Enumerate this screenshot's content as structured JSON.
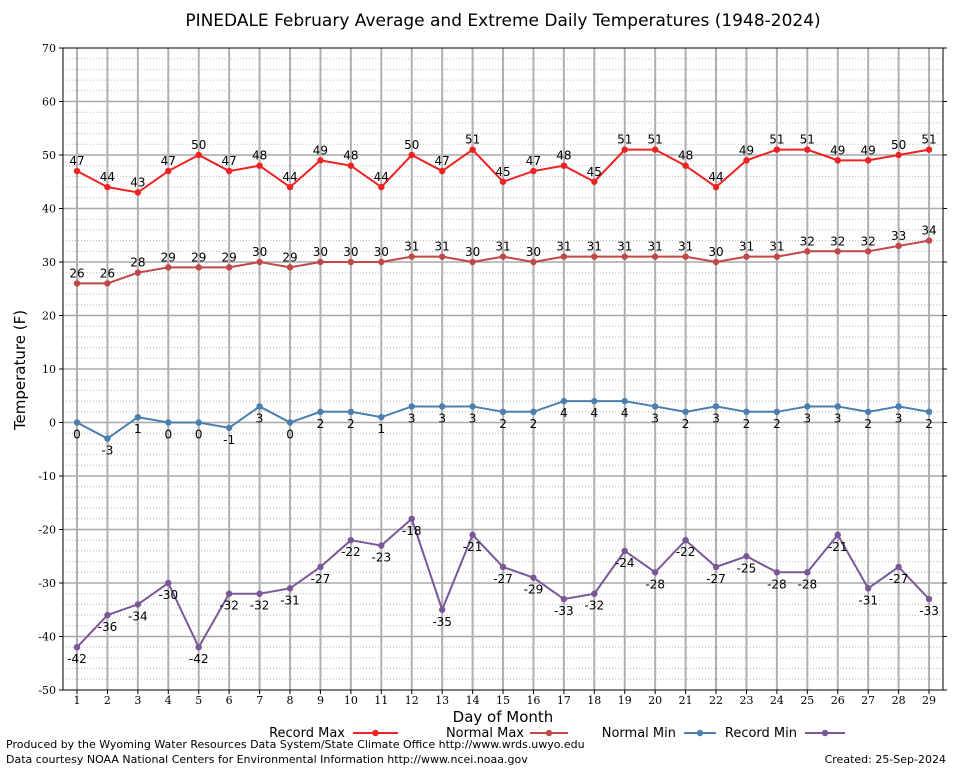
{
  "chart_data": {
    "type": "line",
    "title": "PINEDALE February Average and Extreme Daily Temperatures (1948-2024)",
    "xlabel": "Day of Month",
    "ylabel": "Temperature (F)",
    "ylim": [
      -50,
      70
    ],
    "yticks": [
      -50,
      -40,
      -30,
      -20,
      -10,
      0,
      10,
      20,
      30,
      40,
      50,
      60,
      70
    ],
    "grid": true,
    "legend_position": "bottom",
    "categories": [
      "1",
      "2",
      "3",
      "4",
      "5",
      "6",
      "7",
      "8",
      "9",
      "10",
      "11",
      "12",
      "13",
      "14",
      "15",
      "16",
      "17",
      "18",
      "19",
      "20",
      "21",
      "22",
      "23",
      "24",
      "25",
      "26",
      "27",
      "28",
      "29"
    ],
    "series": [
      {
        "name": "Record Max",
        "color": "#ee2222",
        "label_position": "above",
        "values": [
          47,
          44,
          43,
          47,
          50,
          47,
          48,
          44,
          49,
          48,
          44,
          50,
          47,
          51,
          45,
          47,
          48,
          45,
          51,
          51,
          48,
          44,
          49,
          51,
          51,
          49,
          49,
          50,
          51
        ]
      },
      {
        "name": "Normal Max",
        "color": "#c04848",
        "label_position": "above",
        "values": [
          26,
          26,
          28,
          29,
          29,
          29,
          30,
          29,
          30,
          30,
          30,
          31,
          31,
          30,
          31,
          30,
          31,
          31,
          31,
          31,
          31,
          30,
          31,
          31,
          32,
          32,
          32,
          33,
          34
        ]
      },
      {
        "name": "Normal Min",
        "color": "#4a7fb0",
        "label_position": "below",
        "values": [
          0,
          -3,
          1,
          0,
          0,
          -1,
          3,
          0,
          2,
          2,
          1,
          3,
          3,
          3,
          2,
          2,
          4,
          4,
          4,
          3,
          2,
          3,
          2,
          2,
          3,
          3,
          2,
          3,
          2
        ]
      },
      {
        "name": "Record Min",
        "color": "#7a5898",
        "label_position": "below",
        "values": [
          -42,
          -36,
          -34,
          -30,
          -42,
          -32,
          -32,
          -31,
          -27,
          -22,
          -23,
          -18,
          -35,
          -21,
          -27,
          -29,
          -33,
          -32,
          -24,
          -28,
          -22,
          -27,
          -25,
          -28,
          -28,
          -21,
          -31,
          -27,
          -33
        ]
      }
    ]
  },
  "footer": {
    "produced_by": "Produced by the Wyoming Water Resources Data System/State Climate Office http://www.wrds.uwyo.edu",
    "data_courtesy": "Data courtesy NOAA National Centers for Environmental Information http://www.ncei.noaa.gov",
    "created": "Created:  25-Sep-2024"
  }
}
